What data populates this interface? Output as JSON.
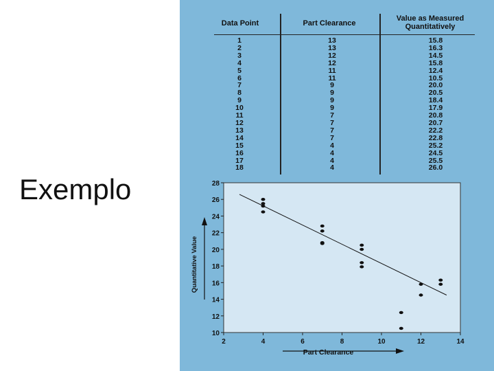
{
  "slide": {
    "title": "Exemplo"
  },
  "table": {
    "headers": [
      "Data Point",
      "Part Clearance",
      "Value as Measured Quantitatively"
    ],
    "data_point": [
      "1",
      "2",
      "3",
      "4",
      "5",
      "6",
      "7",
      "8",
      "9",
      "10",
      "11",
      "12",
      "13",
      "14",
      "15",
      "16",
      "17",
      "18"
    ],
    "part_clearance": [
      "13",
      "13",
      "12",
      "12",
      "11",
      "11",
      "9",
      "9",
      "9",
      "9",
      "7",
      "7",
      "7",
      "7",
      "4",
      "4",
      "4",
      "4"
    ],
    "value": [
      "15.8",
      "16.3",
      "14.5",
      "15.8",
      "12.4",
      "10.5",
      "20.0",
      "20.5",
      "18.4",
      "17.9",
      "20.8",
      "20.7",
      "22.2",
      "22.8",
      "25.2",
      "24.5",
      "25.5",
      "26.0"
    ]
  },
  "chart_data": {
    "type": "scatter",
    "xlabel": "Part Clearance",
    "ylabel": "Quantitative Value",
    "xlim": [
      2,
      14
    ],
    "ylim": [
      10,
      28
    ],
    "xticks": [
      2,
      4,
      6,
      8,
      10,
      12,
      14
    ],
    "yticks": [
      10,
      12,
      14,
      16,
      18,
      20,
      22,
      24,
      26,
      28
    ],
    "points": [
      [
        13,
        15.8
      ],
      [
        13,
        16.3
      ],
      [
        12,
        14.5
      ],
      [
        12,
        15.8
      ],
      [
        11,
        12.4
      ],
      [
        11,
        10.5
      ],
      [
        9,
        20.0
      ],
      [
        9,
        20.5
      ],
      [
        9,
        18.4
      ],
      [
        9,
        17.9
      ],
      [
        7,
        20.8
      ],
      [
        7,
        20.7
      ],
      [
        7,
        22.2
      ],
      [
        7,
        22.8
      ],
      [
        4,
        25.2
      ],
      [
        4,
        24.5
      ],
      [
        4,
        25.5
      ],
      [
        4,
        26.0
      ]
    ],
    "trendline": [
      [
        2.8,
        26.6
      ],
      [
        13.3,
        14.5
      ]
    ],
    "grid": false
  }
}
